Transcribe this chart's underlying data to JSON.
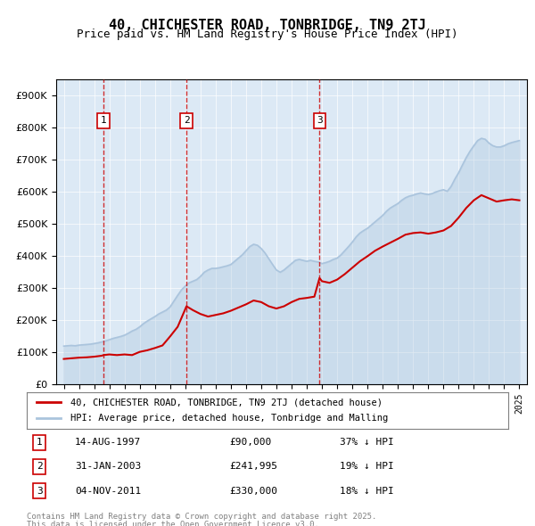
{
  "title": "40, CHICHESTER ROAD, TONBRIDGE, TN9 2TJ",
  "subtitle": "Price paid vs. HM Land Registry's House Price Index (HPI)",
  "legend_line1": "40, CHICHESTER ROAD, TONBRIDGE, TN9 2TJ (detached house)",
  "legend_line2": "HPI: Average price, detached house, Tonbridge and Malling",
  "footer1": "Contains HM Land Registry data © Crown copyright and database right 2025.",
  "footer2": "This data is licensed under the Open Government Licence v3.0.",
  "transactions": [
    {
      "num": 1,
      "date": "14-AUG-1997",
      "price": "£90,000",
      "pct": "37% ↓ HPI",
      "x_year": 1997.62
    },
    {
      "num": 2,
      "date": "31-JAN-2003",
      "price": "£241,995",
      "pct": "19% ↓ HPI",
      "x_year": 2003.08
    },
    {
      "num": 3,
      "date": "04-NOV-2011",
      "price": "£330,000",
      "pct": "18% ↓ HPI",
      "x_year": 2011.84
    }
  ],
  "hpi_color": "#aac4dd",
  "price_color": "#cc0000",
  "vline_color": "#cc0000",
  "background_color": "#dce9f5",
  "plot_bg": "#dce9f5",
  "xlim": [
    1994.5,
    2025.5
  ],
  "ylim": [
    0,
    950000
  ],
  "yticks": [
    0,
    100000,
    200000,
    300000,
    400000,
    500000,
    600000,
    700000,
    800000,
    900000
  ],
  "xticks": [
    1995,
    1996,
    1997,
    1998,
    1999,
    2000,
    2001,
    2002,
    2003,
    2004,
    2005,
    2006,
    2007,
    2008,
    2009,
    2010,
    2011,
    2012,
    2013,
    2014,
    2015,
    2016,
    2017,
    2018,
    2019,
    2020,
    2021,
    2022,
    2023,
    2024,
    2025
  ],
  "hpi_data": [
    [
      1995.0,
      118000
    ],
    [
      1995.25,
      119000
    ],
    [
      1995.5,
      120000
    ],
    [
      1995.75,
      119000
    ],
    [
      1996.0,
      121000
    ],
    [
      1996.25,
      122000
    ],
    [
      1996.5,
      123000
    ],
    [
      1996.75,
      124000
    ],
    [
      1997.0,
      126000
    ],
    [
      1997.25,
      128000
    ],
    [
      1997.5,
      131000
    ],
    [
      1997.75,
      134000
    ],
    [
      1998.0,
      138000
    ],
    [
      1998.25,
      142000
    ],
    [
      1998.5,
      145000
    ],
    [
      1998.75,
      148000
    ],
    [
      1999.0,
      152000
    ],
    [
      1999.25,
      158000
    ],
    [
      1999.5,
      165000
    ],
    [
      1999.75,
      170000
    ],
    [
      2000.0,
      178000
    ],
    [
      2000.25,
      188000
    ],
    [
      2000.5,
      196000
    ],
    [
      2000.75,
      203000
    ],
    [
      2001.0,
      210000
    ],
    [
      2001.25,
      218000
    ],
    [
      2001.5,
      224000
    ],
    [
      2001.75,
      230000
    ],
    [
      2002.0,
      240000
    ],
    [
      2002.25,
      258000
    ],
    [
      2002.5,
      276000
    ],
    [
      2002.75,
      293000
    ],
    [
      2003.0,
      305000
    ],
    [
      2003.25,
      315000
    ],
    [
      2003.5,
      320000
    ],
    [
      2003.75,
      325000
    ],
    [
      2004.0,
      335000
    ],
    [
      2004.25,
      348000
    ],
    [
      2004.5,
      355000
    ],
    [
      2004.75,
      360000
    ],
    [
      2005.0,
      360000
    ],
    [
      2005.25,
      362000
    ],
    [
      2005.5,
      365000
    ],
    [
      2005.75,
      368000
    ],
    [
      2006.0,
      372000
    ],
    [
      2006.25,
      382000
    ],
    [
      2006.5,
      392000
    ],
    [
      2006.75,
      402000
    ],
    [
      2007.0,
      415000
    ],
    [
      2007.25,
      428000
    ],
    [
      2007.5,
      435000
    ],
    [
      2007.75,
      432000
    ],
    [
      2008.0,
      422000
    ],
    [
      2008.25,
      408000
    ],
    [
      2008.5,
      390000
    ],
    [
      2008.75,
      372000
    ],
    [
      2009.0,
      355000
    ],
    [
      2009.25,
      348000
    ],
    [
      2009.5,
      355000
    ],
    [
      2009.75,
      365000
    ],
    [
      2010.0,
      375000
    ],
    [
      2010.25,
      385000
    ],
    [
      2010.5,
      388000
    ],
    [
      2010.75,
      385000
    ],
    [
      2011.0,
      382000
    ],
    [
      2011.25,
      385000
    ],
    [
      2011.5,
      382000
    ],
    [
      2011.75,
      380000
    ],
    [
      2012.0,
      375000
    ],
    [
      2012.25,
      378000
    ],
    [
      2012.5,
      382000
    ],
    [
      2012.75,
      388000
    ],
    [
      2013.0,
      392000
    ],
    [
      2013.25,
      402000
    ],
    [
      2013.5,
      415000
    ],
    [
      2013.75,
      428000
    ],
    [
      2014.0,
      442000
    ],
    [
      2014.25,
      458000
    ],
    [
      2014.5,
      470000
    ],
    [
      2014.75,
      478000
    ],
    [
      2015.0,
      485000
    ],
    [
      2015.25,
      495000
    ],
    [
      2015.5,
      505000
    ],
    [
      2015.75,
      515000
    ],
    [
      2016.0,
      525000
    ],
    [
      2016.25,
      538000
    ],
    [
      2016.5,
      548000
    ],
    [
      2016.75,
      555000
    ],
    [
      2017.0,
      562000
    ],
    [
      2017.25,
      572000
    ],
    [
      2017.5,
      580000
    ],
    [
      2017.75,
      585000
    ],
    [
      2018.0,
      588000
    ],
    [
      2018.25,
      592000
    ],
    [
      2018.5,
      595000
    ],
    [
      2018.75,
      592000
    ],
    [
      2019.0,
      590000
    ],
    [
      2019.25,
      593000
    ],
    [
      2019.5,
      598000
    ],
    [
      2019.75,
      602000
    ],
    [
      2020.0,
      605000
    ],
    [
      2020.25,
      600000
    ],
    [
      2020.5,
      615000
    ],
    [
      2020.75,
      638000
    ],
    [
      2021.0,
      658000
    ],
    [
      2021.25,
      682000
    ],
    [
      2021.5,
      705000
    ],
    [
      2021.75,
      725000
    ],
    [
      2022.0,
      742000
    ],
    [
      2022.25,
      758000
    ],
    [
      2022.5,
      765000
    ],
    [
      2022.75,
      762000
    ],
    [
      2023.0,
      750000
    ],
    [
      2023.25,
      742000
    ],
    [
      2023.5,
      738000
    ],
    [
      2023.75,
      738000
    ],
    [
      2024.0,
      742000
    ],
    [
      2024.25,
      748000
    ],
    [
      2024.5,
      752000
    ],
    [
      2024.75,
      755000
    ],
    [
      2025.0,
      758000
    ]
  ],
  "price_data": [
    [
      1995.0,
      78000
    ],
    [
      1995.5,
      80000
    ],
    [
      1996.0,
      82000
    ],
    [
      1996.5,
      83000
    ],
    [
      1997.0,
      85000
    ],
    [
      1997.5,
      88000
    ],
    [
      1997.62,
      90000
    ],
    [
      1998.0,
      92000
    ],
    [
      1998.5,
      90000
    ],
    [
      1999.0,
      92000
    ],
    [
      1999.5,
      90000
    ],
    [
      2000.0,
      100000
    ],
    [
      2000.5,
      105000
    ],
    [
      2001.0,
      112000
    ],
    [
      2001.5,
      120000
    ],
    [
      2002.0,
      148000
    ],
    [
      2002.5,
      178000
    ],
    [
      2003.08,
      241995
    ],
    [
      2003.5,
      230000
    ],
    [
      2004.0,
      218000
    ],
    [
      2004.5,
      210000
    ],
    [
      2005.0,
      215000
    ],
    [
      2005.5,
      220000
    ],
    [
      2006.0,
      228000
    ],
    [
      2006.5,
      238000
    ],
    [
      2007.0,
      248000
    ],
    [
      2007.5,
      260000
    ],
    [
      2008.0,
      255000
    ],
    [
      2008.5,
      242000
    ],
    [
      2009.0,
      235000
    ],
    [
      2009.5,
      242000
    ],
    [
      2010.0,
      255000
    ],
    [
      2010.5,
      265000
    ],
    [
      2011.0,
      268000
    ],
    [
      2011.5,
      272000
    ],
    [
      2011.84,
      330000
    ],
    [
      2012.0,
      320000
    ],
    [
      2012.5,
      315000
    ],
    [
      2013.0,
      325000
    ],
    [
      2013.5,
      342000
    ],
    [
      2014.0,
      362000
    ],
    [
      2014.5,
      382000
    ],
    [
      2015.0,
      398000
    ],
    [
      2015.5,
      415000
    ],
    [
      2016.0,
      428000
    ],
    [
      2016.5,
      440000
    ],
    [
      2017.0,
      452000
    ],
    [
      2017.5,
      465000
    ],
    [
      2018.0,
      470000
    ],
    [
      2018.5,
      472000
    ],
    [
      2019.0,
      468000
    ],
    [
      2019.5,
      472000
    ],
    [
      2020.0,
      478000
    ],
    [
      2020.5,
      492000
    ],
    [
      2021.0,
      518000
    ],
    [
      2021.5,
      548000
    ],
    [
      2022.0,
      572000
    ],
    [
      2022.5,
      588000
    ],
    [
      2023.0,
      578000
    ],
    [
      2023.5,
      568000
    ],
    [
      2024.0,
      572000
    ],
    [
      2024.5,
      575000
    ],
    [
      2025.0,
      572000
    ]
  ]
}
